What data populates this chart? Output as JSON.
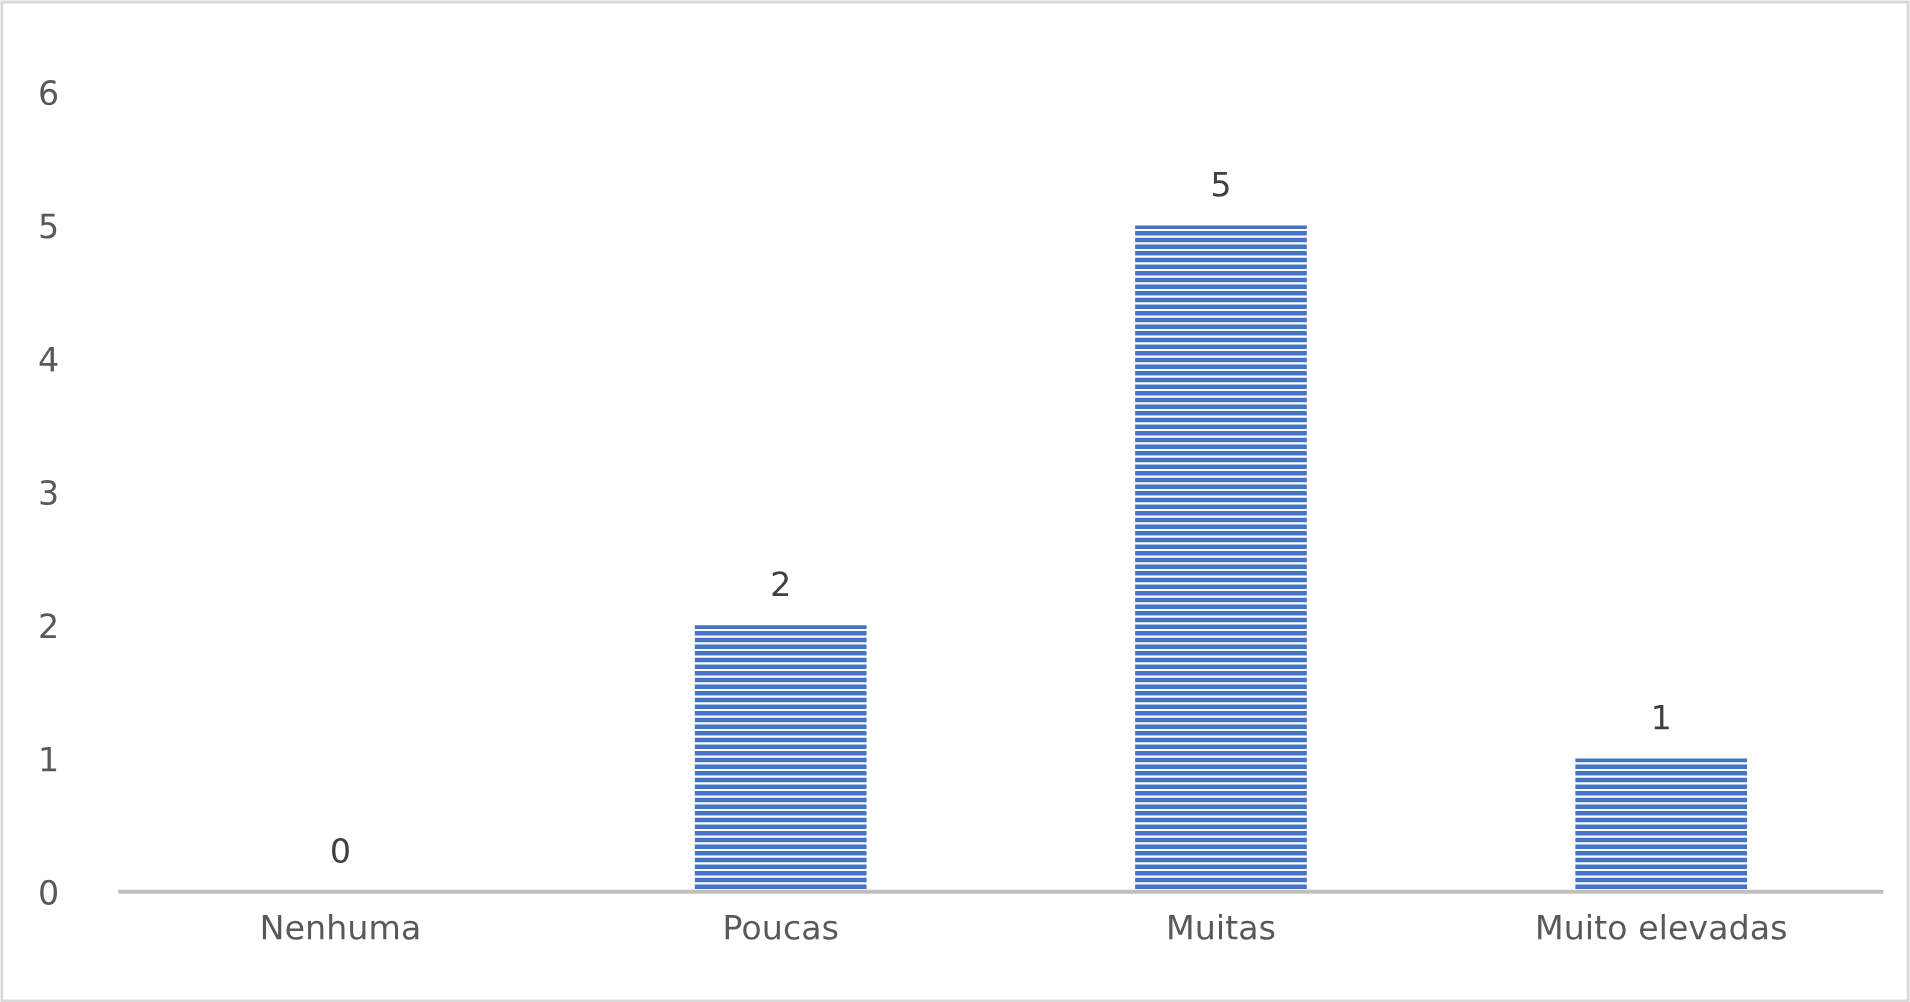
{
  "chart_data": {
    "type": "bar",
    "categories": [
      "Nenhuma",
      "Poucas",
      "Muitas",
      "Muito elevadas"
    ],
    "values": [
      0,
      2,
      5,
      1
    ],
    "color": "#4472c4",
    "ylim": [
      0,
      6
    ],
    "yticks": [
      0,
      1,
      2,
      3,
      4,
      5,
      6
    ],
    "grid": false,
    "data_labels": true
  }
}
